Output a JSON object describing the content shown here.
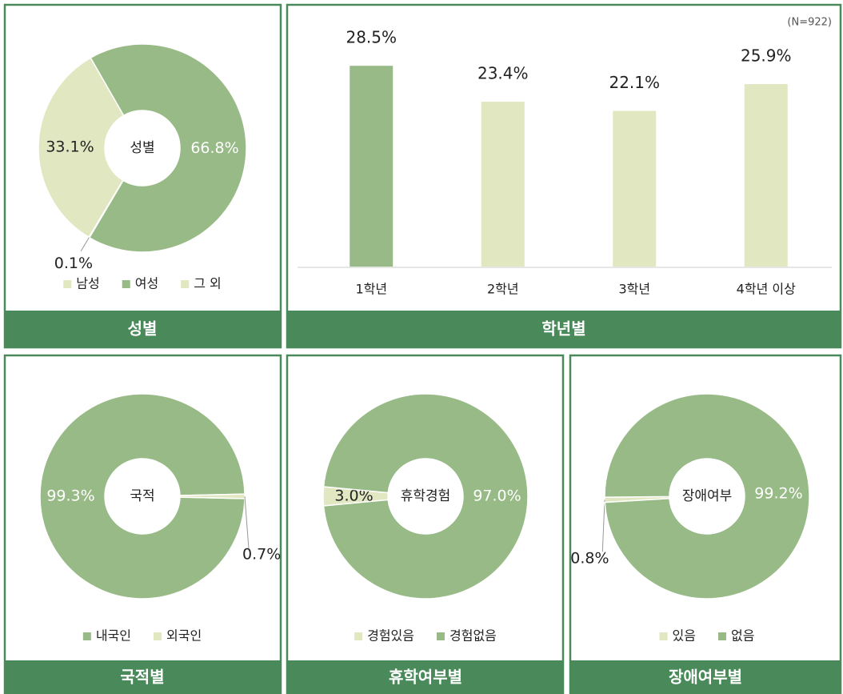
{
  "chart_data": [
    {
      "type": "pie",
      "title": "성별",
      "center_label": "성별",
      "categories": [
        "남성",
        "여성",
        "그 외"
      ],
      "values": [
        33.1,
        66.8,
        0.1
      ],
      "value_labels": [
        "33.1%",
        "66.8%",
        "0.1%"
      ],
      "colors": [
        "#e1e7c0",
        "#97ba86",
        "#e1e7c0"
      ],
      "start_angle": 211,
      "legend": "bottom"
    },
    {
      "type": "bar",
      "title": "학년별",
      "note": "(N=922)",
      "categories": [
        "1학년",
        "2학년",
        "3학년",
        "4학년 이상"
      ],
      "values": [
        28.5,
        23.4,
        22.1,
        25.9
      ],
      "value_labels": [
        "28.5%",
        "23.4%",
        "22.1%",
        "25.9%"
      ],
      "colors": [
        "#97ba86",
        "#e1e7c0",
        "#e1e7c0",
        "#e1e7c0"
      ],
      "ylim": [
        0,
        30
      ]
    },
    {
      "type": "pie",
      "title": "국적별",
      "center_label": "국적",
      "categories": [
        "내국인",
        "외국인"
      ],
      "values": [
        99.3,
        0.7
      ],
      "value_labels": [
        "99.3%",
        "0.7%"
      ],
      "colors": [
        "#97ba86",
        "#e1e7c0"
      ],
      "start_angle": 91.3,
      "legend": "bottom"
    },
    {
      "type": "pie",
      "title": "휴학여부별",
      "center_label": "휴학경험",
      "categories": [
        "경험있음",
        "경험없음"
      ],
      "values": [
        3.0,
        97.0
      ],
      "value_labels": [
        "3.0%",
        "97.0%"
      ],
      "colors": [
        "#e1e7c0",
        "#97ba86"
      ],
      "start_angle": 264.6,
      "legend": "bottom"
    },
    {
      "type": "pie",
      "title": "장애여부별",
      "center_label": "장애여부",
      "categories": [
        "있음",
        "없음"
      ],
      "values": [
        0.8,
        99.2
      ],
      "value_labels": [
        "0.8%",
        "99.2%"
      ],
      "colors": [
        "#e1e7c0",
        "#97ba86"
      ],
      "start_angle": 266.6,
      "legend": "bottom"
    }
  ]
}
